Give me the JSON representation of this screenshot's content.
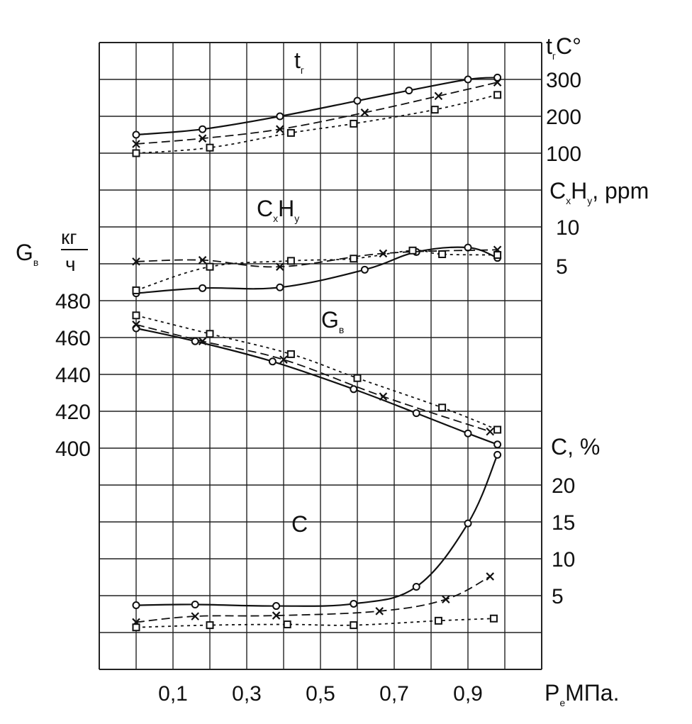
{
  "chart_data": {
    "type": "line",
    "x_axis": {
      "label_main": "P",
      "label_sub": "e",
      "label_unit": "МПа.",
      "ticks": [
        "0,1",
        "0,3",
        "0,5",
        "0,7",
        "0,9"
      ]
    },
    "panels": [
      {
        "id": "tr",
        "type": "line",
        "label_main": "t",
        "label_sub": "г",
        "axis_label_main": "t",
        "axis_label_sub": "г",
        "axis_label_unit": "C°",
        "ylim": [
          100,
          300
        ],
        "y_ticks": [
          "300",
          "200",
          "100"
        ],
        "series": [
          {
            "marker": "circle",
            "dash": "solid",
            "x": [
              0.0,
              0.18,
              0.39,
              0.6,
              0.74,
              0.9,
              0.98
            ],
            "y": [
              150,
              165,
              200,
              242,
              270,
              300,
              305
            ]
          },
          {
            "marker": "cross",
            "dash": "dashed",
            "x": [
              0.0,
              0.18,
              0.39,
              0.62,
              0.82,
              0.98
            ],
            "y": [
              125,
              140,
              165,
              210,
              255,
              292
            ]
          },
          {
            "marker": "square",
            "dash": "dotted",
            "x": [
              0.0,
              0.2,
              0.42,
              0.59,
              0.81,
              0.98
            ],
            "y": [
              100,
              115,
              155,
              180,
              218,
              258
            ]
          }
        ]
      },
      {
        "id": "cxhy",
        "type": "line",
        "label_main": "C",
        "label_sub1": "x",
        "label_mid": "H",
        "label_sub2": "y",
        "axis_label_main": "C",
        "axis_label_sub1": "x",
        "axis_label_mid": "H",
        "axis_label_sub2": "y",
        "axis_label_unit": ", ppm",
        "ylim": [
          0,
          10
        ],
        "y_ticks": [
          "10",
          "5"
        ],
        "series": [
          {
            "marker": "circle",
            "dash": "solid",
            "x": [
              0.0,
              0.18,
              0.39,
              0.62,
              0.76,
              0.9,
              0.98
            ],
            "y": [
              1.0,
              1.7,
              1.8,
              4.2,
              6.6,
              7.2,
              5.8
            ]
          },
          {
            "marker": "cross",
            "dash": "dashed",
            "x": [
              0.0,
              0.18,
              0.39,
              0.67,
              0.98
            ],
            "y": [
              5.3,
              5.5,
              4.6,
              6.4,
              6.9
            ]
          },
          {
            "marker": "square",
            "dash": "dotted",
            "x": [
              0.0,
              0.2,
              0.42,
              0.59,
              0.75,
              0.83,
              0.98
            ],
            "y": [
              1.4,
              4.6,
              5.4,
              5.7,
              6.8,
              6.3,
              6.2
            ]
          }
        ]
      },
      {
        "id": "gv",
        "type": "line",
        "label_main": "G",
        "label_sub": "в",
        "axis_label_main": "G",
        "axis_label_sub": "в",
        "axis_label_num": "кг",
        "axis_label_den": "ч",
        "ylim": [
          400,
          480
        ],
        "y_ticks": [
          "480",
          "460",
          "440",
          "420",
          "400"
        ],
        "series": [
          {
            "marker": "circle",
            "dash": "solid",
            "x": [
              0.0,
              0.16,
              0.37,
              0.59,
              0.76,
              0.9,
              0.98
            ],
            "y": [
              465,
              458,
              447,
              432,
              419,
              408,
              402
            ]
          },
          {
            "marker": "cross",
            "dash": "dashed",
            "x": [
              0.0,
              0.18,
              0.4,
              0.67,
              0.96
            ],
            "y": [
              467,
              458,
              448,
              428,
              409
            ]
          },
          {
            "marker": "square",
            "dash": "dotted",
            "x": [
              0.0,
              0.2,
              0.42,
              0.6,
              0.83,
              0.98
            ],
            "y": [
              472,
              462,
              451,
              438,
              422,
              410
            ]
          }
        ]
      },
      {
        "id": "c",
        "type": "line",
        "label_main": "C",
        "axis_label_main": "C",
        "axis_label_unit": ", %",
        "ylim": [
          0,
          20
        ],
        "y_ticks": [
          "20",
          "15",
          "10",
          "5"
        ],
        "series": [
          {
            "marker": "circle",
            "dash": "solid",
            "x": [
              0.0,
              0.16,
              0.38,
              0.59,
              0.76,
              0.9,
              0.98
            ],
            "y": [
              3.7,
              3.8,
              3.6,
              3.9,
              6.2,
              14.8,
              24.1
            ]
          },
          {
            "marker": "cross",
            "dash": "dashed",
            "x": [
              0.0,
              0.16,
              0.38,
              0.66,
              0.84,
              0.96
            ],
            "y": [
              1.4,
              2.2,
              2.3,
              2.9,
              4.5,
              7.6
            ]
          },
          {
            "marker": "square",
            "dash": "dotted",
            "x": [
              0.0,
              0.2,
              0.41,
              0.59,
              0.82,
              0.97
            ],
            "y": [
              0.7,
              1.0,
              1.1,
              1.0,
              1.6,
              1.9
            ]
          }
        ]
      }
    ]
  }
}
